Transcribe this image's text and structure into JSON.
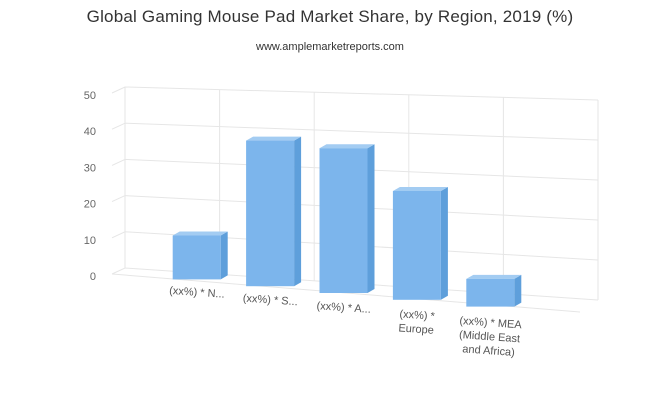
{
  "title": "Global Gaming Mouse Pad Market Share, by Region, 2019 (%)",
  "subtitle": "www.amplemarketreports.com",
  "chart_data": {
    "type": "bar",
    "title": "Global Gaming Mouse Pad Market Share, by Region, 2019 (%)",
    "subtitle": "www.amplemarketreports.com",
    "categories": [
      [
        "(xx%) * N..."
      ],
      [
        "(xx%) * S..."
      ],
      [
        "(xx%) * A..."
      ],
      [
        "(xx%) *",
        "Europe"
      ],
      [
        "(xx%) * MEA",
        "(Middle East",
        "and Africa)"
      ]
    ],
    "values": [
      12,
      39,
      38,
      28,
      7
    ],
    "ylim": [
      0,
      50
    ],
    "yticks": [
      0,
      10,
      20,
      30,
      40,
      50
    ],
    "xlabel": "",
    "ylabel": "",
    "grid": true,
    "bar_color": "#7cb5ec",
    "bar_side_color": "#5e9fdb",
    "bar_top_color": "#a3ccf2",
    "grid_color": "#e6e6e6"
  }
}
